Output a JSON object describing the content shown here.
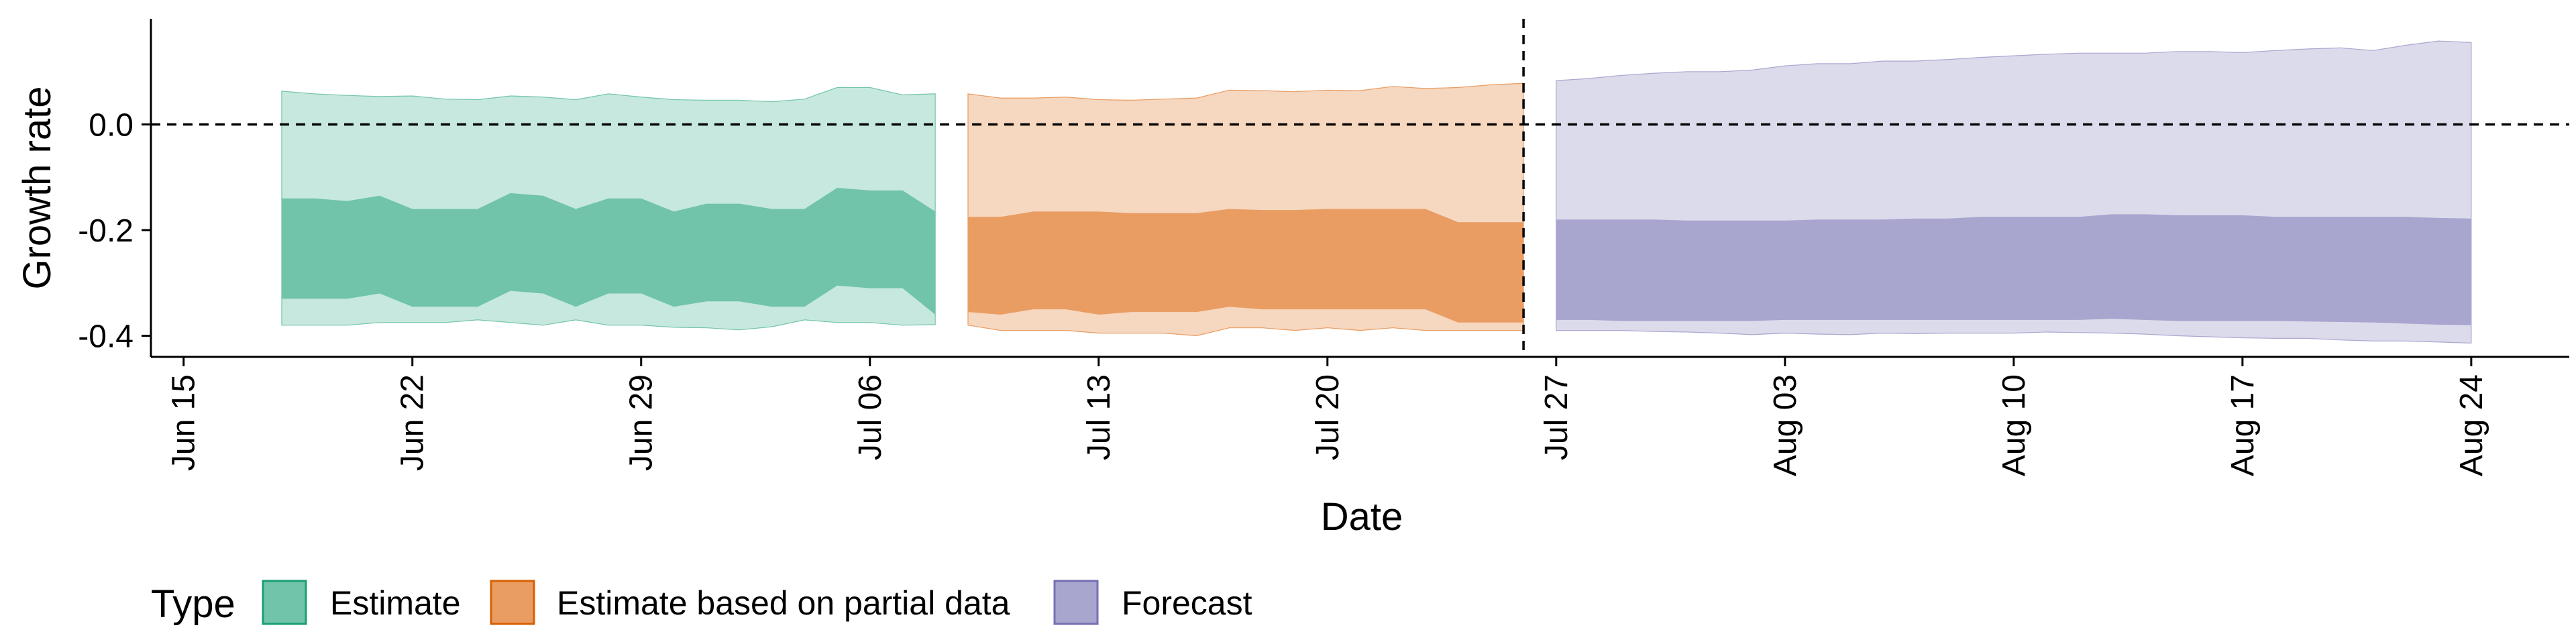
{
  "chart_data": {
    "type": "area",
    "title": "",
    "xlabel": "Date",
    "ylabel": "Growth rate",
    "x_range": [
      "2020-06-14",
      "2020-08-27"
    ],
    "ylim": [
      -0.44,
      0.2
    ],
    "x_ticks": [
      {
        "date": "2020-06-15",
        "label": "Jun 15"
      },
      {
        "date": "2020-06-22",
        "label": "Jun 22"
      },
      {
        "date": "2020-06-29",
        "label": "Jun 29"
      },
      {
        "date": "2020-07-06",
        "label": "Jul 06"
      },
      {
        "date": "2020-07-13",
        "label": "Jul 13"
      },
      {
        "date": "2020-07-20",
        "label": "Jul 20"
      },
      {
        "date": "2020-07-27",
        "label": "Jul 27"
      },
      {
        "date": "2020-08-03",
        "label": "Aug 03"
      },
      {
        "date": "2020-08-10",
        "label": "Aug 10"
      },
      {
        "date": "2020-08-17",
        "label": "Aug 17"
      },
      {
        "date": "2020-08-24",
        "label": "Aug 24"
      }
    ],
    "y_ticks": [
      {
        "value": 0.0,
        "label": "0.0"
      },
      {
        "value": -0.2,
        "label": "-0.2"
      },
      {
        "value": -0.4,
        "label": "-0.4"
      }
    ],
    "reference_lines": {
      "horizontal": 0.0,
      "vertical": "2020-07-26"
    },
    "grid": false,
    "legend": {
      "title": "Type",
      "placement": "bottom-left",
      "entries": [
        "Estimate",
        "Estimate based on partial data",
        "Forecast"
      ]
    },
    "series": [
      {
        "name": "Estimate",
        "fill_light": "#c6e8de",
        "fill_dark": "#71c3aa",
        "stroke": "#1b9e77",
        "dates": [
          "2020-06-18",
          "2020-06-19",
          "2020-06-20",
          "2020-06-21",
          "2020-06-22",
          "2020-06-23",
          "2020-06-24",
          "2020-06-25",
          "2020-06-26",
          "2020-06-27",
          "2020-06-28",
          "2020-06-29",
          "2020-06-30",
          "2020-07-01",
          "2020-07-02",
          "2020-07-03",
          "2020-07-04",
          "2020-07-05",
          "2020-07-06",
          "2020-07-07",
          "2020-07-08"
        ],
        "outer_upper": [
          0.063,
          0.058,
          0.055,
          0.053,
          0.054,
          0.048,
          0.047,
          0.054,
          0.052,
          0.047,
          0.058,
          0.052,
          0.047,
          0.046,
          0.046,
          0.043,
          0.048,
          0.07,
          0.07,
          0.056,
          0.058
        ],
        "outer_lower": [
          -0.38,
          -0.38,
          -0.38,
          -0.375,
          -0.375,
          -0.375,
          -0.37,
          -0.375,
          -0.38,
          -0.37,
          -0.38,
          -0.38,
          -0.384,
          -0.385,
          -0.389,
          -0.383,
          -0.37,
          -0.375,
          -0.375,
          -0.38,
          -0.379
        ],
        "inner_upper": [
          -0.14,
          -0.14,
          -0.145,
          -0.135,
          -0.16,
          -0.16,
          -0.16,
          -0.13,
          -0.135,
          -0.16,
          -0.14,
          -0.14,
          -0.165,
          -0.15,
          -0.15,
          -0.16,
          -0.16,
          -0.12,
          -0.125,
          -0.125,
          -0.165
        ],
        "inner_lower": [
          -0.33,
          -0.33,
          -0.33,
          -0.32,
          -0.345,
          -0.345,
          -0.345,
          -0.315,
          -0.32,
          -0.345,
          -0.32,
          -0.32,
          -0.345,
          -0.335,
          -0.335,
          -0.345,
          -0.345,
          -0.305,
          -0.31,
          -0.31,
          -0.36
        ]
      },
      {
        "name": "Estimate based on partial data",
        "fill_light": "#f6d7bf",
        "fill_dark": "#e99d63",
        "stroke": "#d95f02",
        "dates": [
          "2020-07-09",
          "2020-07-10",
          "2020-07-11",
          "2020-07-12",
          "2020-07-13",
          "2020-07-14",
          "2020-07-15",
          "2020-07-16",
          "2020-07-17",
          "2020-07-18",
          "2020-07-19",
          "2020-07-20",
          "2020-07-21",
          "2020-07-22",
          "2020-07-23",
          "2020-07-24",
          "2020-07-25",
          "2020-07-26"
        ],
        "outer_upper": [
          0.058,
          0.05,
          0.05,
          0.052,
          0.047,
          0.046,
          0.048,
          0.05,
          0.065,
          0.064,
          0.062,
          0.065,
          0.064,
          0.072,
          0.068,
          0.07,
          0.075,
          0.078
        ],
        "outer_lower": [
          -0.38,
          -0.39,
          -0.39,
          -0.39,
          -0.395,
          -0.395,
          -0.395,
          -0.4,
          -0.385,
          -0.385,
          -0.39,
          -0.385,
          -0.39,
          -0.385,
          -0.39,
          -0.39,
          -0.39,
          -0.39
        ],
        "inner_upper": [
          -0.175,
          -0.175,
          -0.165,
          -0.165,
          -0.165,
          -0.168,
          -0.168,
          -0.168,
          -0.16,
          -0.162,
          -0.162,
          -0.16,
          -0.16,
          -0.16,
          -0.16,
          -0.185,
          -0.185,
          -0.185
        ],
        "inner_lower": [
          -0.355,
          -0.36,
          -0.35,
          -0.35,
          -0.36,
          -0.355,
          -0.355,
          -0.355,
          -0.345,
          -0.35,
          -0.35,
          -0.35,
          -0.35,
          -0.35,
          -0.35,
          -0.375,
          -0.375,
          -0.375
        ]
      },
      {
        "name": "Forecast",
        "fill_light": "#dcdbeb",
        "fill_dark": "#a8a5cf",
        "stroke": "#7570b3",
        "dates": [
          "2020-07-27",
          "2020-07-28",
          "2020-07-29",
          "2020-07-30",
          "2020-07-31",
          "2020-08-01",
          "2020-08-02",
          "2020-08-03",
          "2020-08-04",
          "2020-08-05",
          "2020-08-06",
          "2020-08-07",
          "2020-08-08",
          "2020-08-09",
          "2020-08-10",
          "2020-08-11",
          "2020-08-12",
          "2020-08-13",
          "2020-08-14",
          "2020-08-15",
          "2020-08-16",
          "2020-08-17",
          "2020-08-18",
          "2020-08-19",
          "2020-08-20",
          "2020-08-21",
          "2020-08-22",
          "2020-08-23",
          "2020-08-24"
        ],
        "outer_upper": [
          0.083,
          0.087,
          0.093,
          0.097,
          0.1,
          0.1,
          0.103,
          0.111,
          0.115,
          0.115,
          0.12,
          0.12,
          0.123,
          0.127,
          0.13,
          0.133,
          0.135,
          0.135,
          0.135,
          0.138,
          0.138,
          0.136,
          0.14,
          0.143,
          0.145,
          0.14,
          0.15,
          0.158,
          0.155
        ],
        "outer_lower": [
          -0.39,
          -0.39,
          -0.39,
          -0.392,
          -0.393,
          -0.395,
          -0.398,
          -0.395,
          -0.397,
          -0.398,
          -0.395,
          -0.396,
          -0.395,
          -0.395,
          -0.395,
          -0.393,
          -0.394,
          -0.395,
          -0.397,
          -0.4,
          -0.402,
          -0.404,
          -0.405,
          -0.405,
          -0.408,
          -0.41,
          -0.41,
          -0.412,
          -0.414
        ],
        "inner_upper": [
          -0.18,
          -0.18,
          -0.18,
          -0.18,
          -0.182,
          -0.182,
          -0.182,
          -0.182,
          -0.18,
          -0.18,
          -0.18,
          -0.178,
          -0.178,
          -0.175,
          -0.175,
          -0.175,
          -0.175,
          -0.17,
          -0.17,
          -0.172,
          -0.172,
          -0.172,
          -0.175,
          -0.175,
          -0.175,
          -0.175,
          -0.175,
          -0.177,
          -0.178
        ],
        "inner_lower": [
          -0.37,
          -0.37,
          -0.372,
          -0.372,
          -0.372,
          -0.372,
          -0.372,
          -0.37,
          -0.37,
          -0.37,
          -0.37,
          -0.37,
          -0.37,
          -0.37,
          -0.37,
          -0.37,
          -0.37,
          -0.368,
          -0.37,
          -0.372,
          -0.372,
          -0.372,
          -0.372,
          -0.373,
          -0.374,
          -0.375,
          -0.377,
          -0.379,
          -0.38
        ]
      }
    ]
  }
}
